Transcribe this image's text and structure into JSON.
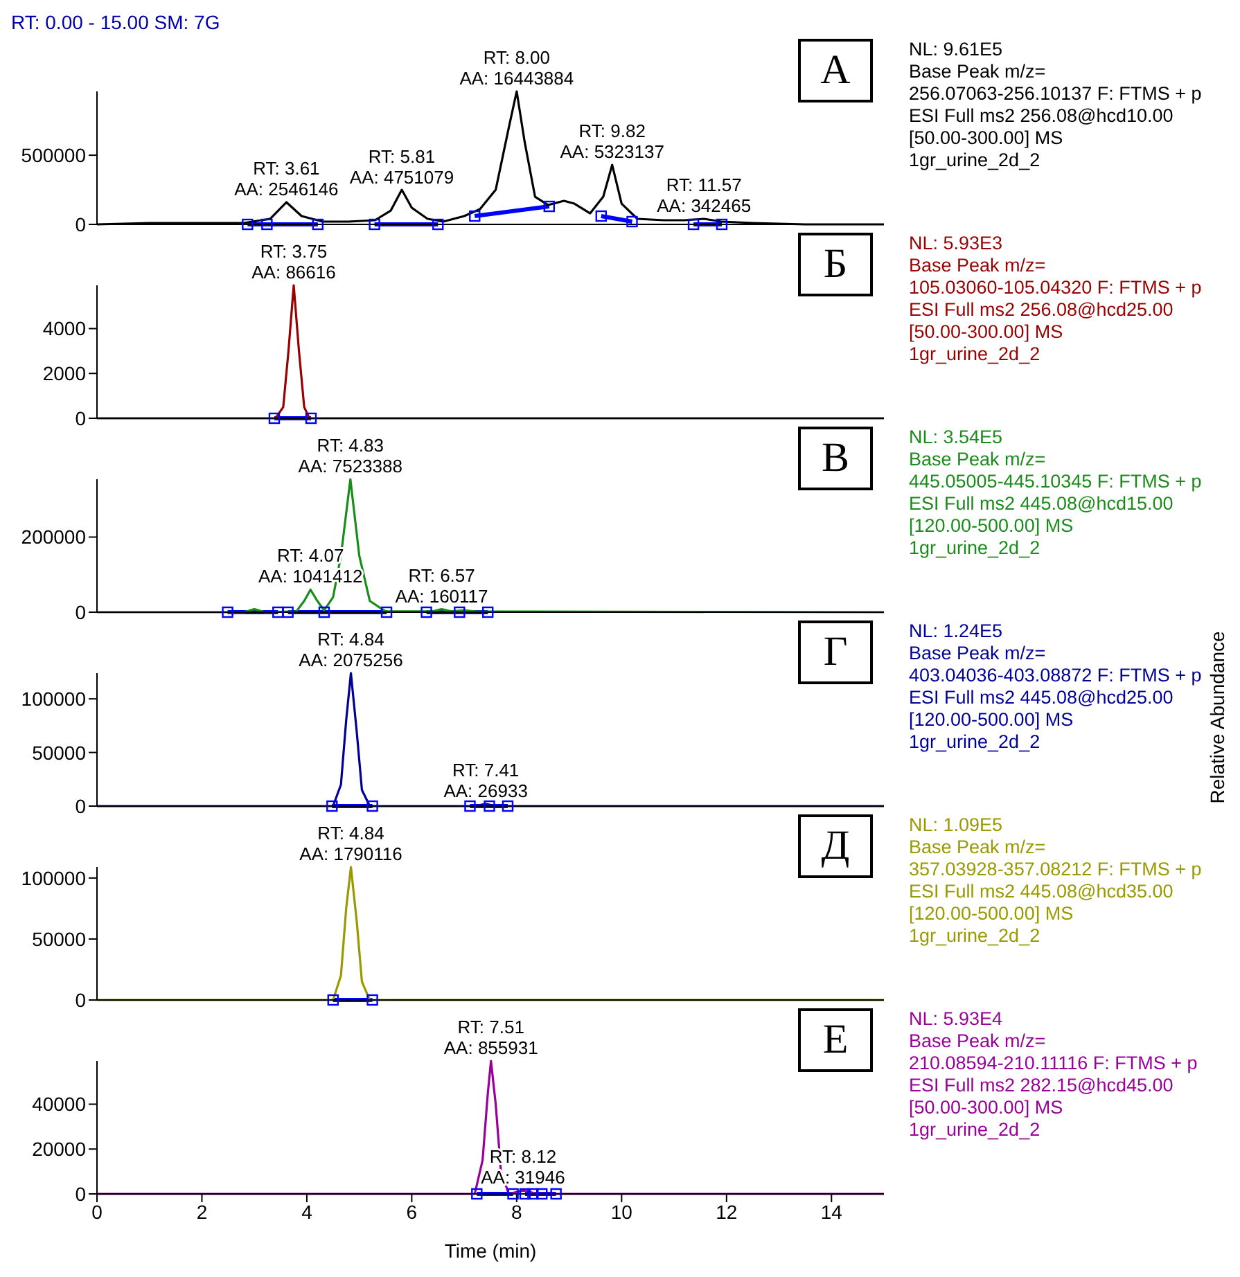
{
  "chart_data": [
    {
      "type": "line",
      "title": "А",
      "subtitle": "RT: 0.00 - 15.00   SM: 7G",
      "xlim": [
        0,
        15
      ],
      "xticks": [
        0,
        2,
        4,
        6,
        8,
        10,
        12,
        14
      ],
      "ylim": [
        0,
        961000
      ],
      "yticks": [
        0,
        500000
      ],
      "tick_labels": "y",
      "series": [
        {
          "color": "#000000",
          "x": [
            0,
            1,
            2,
            2.8,
            3.3,
            3.61,
            3.9,
            4.3,
            4.8,
            5.3,
            5.6,
            5.81,
            6.0,
            6.3,
            6.6,
            7.0,
            7.3,
            7.6,
            7.85,
            8.0,
            8.15,
            8.35,
            8.6,
            8.9,
            9.1,
            9.4,
            9.65,
            9.82,
            10.0,
            10.3,
            10.8,
            11.2,
            11.57,
            11.9,
            12.5,
            13.5,
            15
          ],
          "values": [
            0,
            10000,
            10000,
            10000,
            40000,
            160000,
            60000,
            20000,
            20000,
            30000,
            100000,
            250000,
            120000,
            40000,
            20000,
            60000,
            110000,
            250000,
            700000,
            961000,
            600000,
            200000,
            140000,
            170000,
            150000,
            80000,
            200000,
            430000,
            150000,
            40000,
            30000,
            30000,
            40000,
            20000,
            10000,
            0,
            0
          ]
        },
        {
          "color": "#0000ff",
          "marker": "square",
          "x": [
            2.87,
            3.24,
            4.21,
            4.8,
            5.29,
            6.5,
            6.9,
            7.2,
            8.62,
            9.1,
            9.61,
            10.2,
            10.8,
            11.37,
            11.91
          ],
          "values": [
            0,
            0,
            0,
            null,
            0,
            0,
            null,
            60000,
            130000,
            null,
            60000,
            20000,
            null,
            0,
            0
          ]
        }
      ],
      "annotations": [
        "NL: 9.61E5",
        "Base Peak m/z=",
        "256.07063-256.10137 F: FTMS + p",
        "ESI Full ms2 256.08@hcd10.00",
        "[50.00-300.00]  MS",
        "1gr_urine_2d_2",
        {
          "text": "RT: 3.61\nAA: 2546146",
          "x": 3.61,
          "y": 160000
        },
        {
          "text": "RT: 5.81\nAA: 4751079",
          "x": 5.81,
          "y": 245000
        },
        {
          "text": "RT: 8.00\nAA: 16443884",
          "x": 8.0,
          "y": 961000
        },
        {
          "text": "RT: 9.82\nAA: 5323137",
          "x": 9.82,
          "y": 430000
        },
        {
          "text": "RT: 11.57\nAA: 342465",
          "x": 11.57,
          "y": 40000
        }
      ]
    },
    {
      "type": "line",
      "title": "Б",
      "xlim": [
        0,
        15
      ],
      "xticks": [
        0,
        2,
        4,
        6,
        8,
        10,
        12,
        14
      ],
      "ylim": [
        0,
        5930
      ],
      "yticks": [
        0,
        2000,
        4000
      ],
      "tick_labels": "y",
      "series": [
        {
          "color": "#990000",
          "x": [
            0,
            3.4,
            3.55,
            3.65,
            3.75,
            3.85,
            3.95,
            4.05,
            15
          ],
          "values": [
            0,
            0,
            500,
            3000,
            5930,
            3000,
            500,
            0,
            0
          ]
        },
        {
          "color": "#0000ff",
          "marker": "square",
          "x": [
            3.38,
            4.08
          ],
          "values": [
            0,
            0
          ]
        }
      ],
      "annotations": [
        "NL: 5.93E3",
        "Base Peak m/z=",
        "105.03060-105.04320 F: FTMS + p",
        "ESI Full ms2 256.08@hcd25.00",
        "[50.00-300.00]  MS",
        "1gr_urine_2d_2",
        {
          "text": "RT: 3.75\nAA: 86616",
          "x": 3.75,
          "y": 5930
        }
      ]
    },
    {
      "type": "line",
      "title": "В",
      "xlim": [
        0,
        15
      ],
      "xticks": [
        0,
        2,
        4,
        6,
        8,
        10,
        12,
        14
      ],
      "ylim": [
        0,
        354000
      ],
      "yticks": [
        0,
        200000
      ],
      "tick_labels": "y",
      "series": [
        {
          "color": "#1a8c1a",
          "x": [
            0,
            2.8,
            3.0,
            3.2,
            3.8,
            3.95,
            4.07,
            4.2,
            4.33,
            4.5,
            4.65,
            4.83,
            5.0,
            5.2,
            5.5,
            6.4,
            6.57,
            6.75,
            7.0,
            7.2,
            15
          ],
          "values": [
            0,
            0,
            8000,
            0,
            2000,
            30000,
            60000,
            30000,
            5000,
            40000,
            150000,
            354000,
            150000,
            30000,
            2000,
            2000,
            8000,
            2000,
            5000,
            2000,
            0
          ]
        },
        {
          "color": "#0000ff",
          "marker": "square",
          "x": [
            2.49,
            3.45,
            3.55,
            3.64,
            4.33,
            5.52,
            5.9,
            6.28,
            6.91,
            7.45
          ],
          "values": [
            0,
            0,
            null,
            0,
            0,
            0,
            null,
            0,
            0,
            0
          ]
        }
      ],
      "annotations": [
        "NL: 3.54E5",
        "Base Peak m/z=",
        "445.05005-445.10345 F: FTMS + p",
        "ESI Full ms2 445.08@hcd15.00",
        "[120.00-500.00]  MS",
        "1gr_urine_2d_2",
        {
          "text": "RT: 4.07\nAA: 1041412",
          "x": 4.07,
          "y": 60000
        },
        {
          "text": "RT: 4.83\nAA: 7523388",
          "x": 4.83,
          "y": 354000
        },
        {
          "text": "RT: 6.57\nAA: 160117",
          "x": 6.57,
          "y": 8000
        }
      ]
    },
    {
      "type": "line",
      "title": "Г",
      "ylabel": "Relative Abundance",
      "xlim": [
        0,
        15
      ],
      "xticks": [
        0,
        2,
        4,
        6,
        8,
        10,
        12,
        14
      ],
      "ylim": [
        0,
        124000
      ],
      "yticks": [
        0,
        50000,
        100000
      ],
      "tick_labels": "y",
      "series": [
        {
          "color": "#000099",
          "x": [
            0,
            4.5,
            4.65,
            4.75,
            4.84,
            4.95,
            5.05,
            5.2,
            7.2,
            7.41,
            7.6,
            15
          ],
          "values": [
            0,
            0,
            20000,
            80000,
            124000,
            70000,
            15000,
            0,
            0,
            2000,
            0,
            0
          ]
        },
        {
          "color": "#0000ff",
          "marker": "square",
          "x": [
            4.48,
            5.25,
            6.2,
            7.11,
            7.48,
            7.83
          ],
          "values": [
            0,
            0,
            null,
            0,
            0,
            0
          ]
        }
      ],
      "annotations": [
        "NL: 1.24E5",
        "Base Peak m/z=",
        "403.04036-403.08872 F: FTMS + p",
        "ESI Full ms2 445.08@hcd25.00",
        "[120.00-500.00]  MS",
        "1gr_urine_2d_2",
        {
          "text": "RT: 4.84\nAA: 2075256",
          "x": 4.84,
          "y": 124000
        },
        {
          "text": "RT: 7.41\nAA: 26933",
          "x": 7.41,
          "y": 2000
        }
      ]
    },
    {
      "type": "line",
      "title": "Д",
      "xlim": [
        0,
        15
      ],
      "xticks": [
        0,
        2,
        4,
        6,
        8,
        10,
        12,
        14
      ],
      "ylim": [
        0,
        109000
      ],
      "yticks": [
        0,
        50000,
        100000
      ],
      "tick_labels": "y",
      "series": [
        {
          "color": "#999900",
          "x": [
            0,
            4.5,
            4.65,
            4.75,
            4.84,
            4.95,
            5.05,
            5.2,
            15
          ],
          "values": [
            0,
            0,
            20000,
            75000,
            109000,
            65000,
            15000,
            0,
            0
          ]
        },
        {
          "color": "#0000ff",
          "marker": "square",
          "x": [
            4.5,
            5.25
          ],
          "values": [
            0,
            0
          ]
        }
      ],
      "annotations": [
        "NL: 1.09E5",
        "Base Peak m/z=",
        "357.03928-357.08212 F: FTMS + p",
        "ESI Full ms2 445.08@hcd35.00",
        "[120.00-500.00]  MS",
        "1gr_urine_2d_2",
        {
          "text": "RT: 4.84\nAA: 1790116",
          "x": 4.84,
          "y": 109000
        }
      ]
    },
    {
      "type": "line",
      "title": "Е",
      "xlabel": "Time (min)",
      "xlim": [
        0,
        15
      ],
      "xticks": [
        0,
        2,
        4,
        6,
        8,
        10,
        12,
        14
      ],
      "ylim": [
        0,
        59300
      ],
      "yticks": [
        0,
        20000,
        40000
      ],
      "series": [
        {
          "color": "#990099",
          "x": [
            0,
            7.2,
            7.35,
            7.45,
            7.51,
            7.6,
            7.7,
            7.85,
            8.12,
            8.4,
            15
          ],
          "values": [
            0,
            0,
            15000,
            45000,
            59300,
            40000,
            10000,
            0,
            1500,
            0,
            0
          ]
        },
        {
          "color": "#0000ff",
          "marker": "square",
          "x": [
            7.24,
            7.93,
            8.05,
            8.16,
            8.31,
            8.48,
            8.75
          ],
          "values": [
            0,
            0,
            null,
            0,
            0,
            0,
            0
          ]
        }
      ],
      "annotations": [
        "NL: 5.93E4",
        "Base Peak m/z=",
        "210.08594-210.11116 F: FTMS + p",
        "ESI Full ms2 282.15@hcd45.00",
        "[50.00-300.00]  MS",
        "1gr_urine_2d_2",
        {
          "text": "RT: 7.51\nAA: 855931",
          "x": 7.51,
          "y": 59300
        },
        {
          "text": "RT: 8.12\nAA: 31946",
          "x": 8.12,
          "y": 1500
        }
      ]
    }
  ]
}
